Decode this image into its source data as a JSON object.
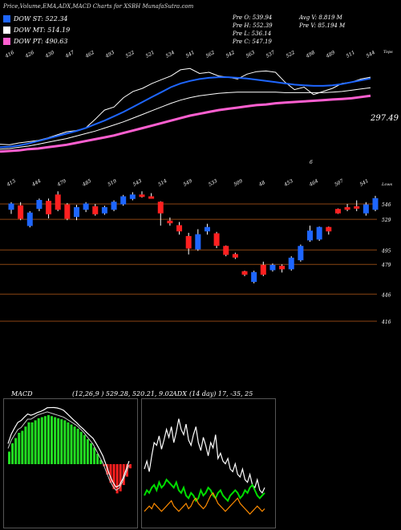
{
  "header": {
    "title": "Price,Volume,EMA,ADX,MACD Charts for XSBH MunafaSutra.com"
  },
  "legend": [
    {
      "label": "DOW ST: 522.34",
      "color": "#1e66ff"
    },
    {
      "label": "DOW MT: 514.19",
      "color": "#ffffff"
    },
    {
      "label": "DOW PT: 490.63",
      "color": "#ff5fd0"
    }
  ],
  "quote": {
    "open": "Pre O: 539.94",
    "high": "Pre H: 552.39",
    "low": "Pre L: 536.14",
    "close": "Pre C: 547.19",
    "avg_volume": "Avg V: 8.819 M",
    "pre_volume": "Pre V: 85.194 M"
  },
  "chart_data": [
    {
      "type": "line",
      "panel": "ema",
      "corner_label": "Tops",
      "price_label": "297.49",
      "tick_labels_top": [
        "416",
        "426",
        "430",
        "447",
        "462",
        "493",
        "522",
        "521",
        "534",
        "541",
        "562",
        "542",
        "563",
        "537",
        "522",
        "498",
        "489",
        "511",
        "544"
      ],
      "tick_labels_bottom": [
        "6"
      ],
      "series": [
        {
          "color": "#ffffff",
          "values": [
            20,
            19,
            22,
            24,
            26,
            30,
            35,
            40,
            42,
            46,
            60,
            75,
            80,
            95,
            105,
            110,
            118,
            124,
            130,
            140,
            142,
            134,
            136,
            130,
            128,
            125,
            133,
            137,
            138,
            136,
            120,
            108,
            112,
            100,
            105,
            110,
            118,
            120,
            125,
            128
          ]
        },
        {
          "color": "#1e66ff",
          "values": [
            15,
            16,
            18,
            21,
            25,
            29,
            33,
            37,
            41,
            46,
            52,
            58,
            65,
            72,
            80,
            88,
            96,
            104,
            112,
            118,
            122,
            125,
            127,
            128,
            128,
            127,
            126,
            124,
            122,
            120,
            118,
            116,
            115,
            114,
            114,
            115,
            117,
            120,
            123,
            126
          ]
        },
        {
          "color": "#ffffff",
          "values": [
            12,
            13,
            15,
            17,
            20,
            23,
            26,
            29,
            33,
            37,
            41,
            46,
            51,
            56,
            62,
            68,
            74,
            80,
            86,
            91,
            95,
            98,
            100,
            102,
            103,
            104,
            104,
            104,
            104,
            104,
            103,
            103,
            103,
            103,
            103,
            104,
            105,
            107,
            109,
            111
          ]
        },
        {
          "color": "#ff5fd0",
          "values": [
            8,
            9,
            10,
            12,
            13,
            15,
            17,
            19,
            22,
            25,
            28,
            31,
            34,
            38,
            42,
            46,
            50,
            54,
            58,
            62,
            66,
            69,
            72,
            75,
            77,
            79,
            81,
            83,
            84,
            86,
            87,
            88,
            89,
            90,
            91,
            92,
            93,
            94,
            96,
            98
          ]
        }
      ]
    },
    {
      "type": "candlestick",
      "panel": "price",
      "corner_label": "Lows",
      "y_axis_labels": [
        "546",
        "529",
        "495",
        "479",
        "446",
        "416"
      ],
      "top_labels": [
        "415",
        "444",
        "479",
        "485",
        "519",
        "543",
        "514",
        "549",
        "533",
        "509",
        "48",
        "453",
        "464",
        "507",
        "541"
      ],
      "candles": [
        {
          "o": 540,
          "c": 546,
          "h": 548,
          "l": 535,
          "up": true
        },
        {
          "o": 544,
          "c": 530,
          "h": 548,
          "l": 528,
          "up": false
        },
        {
          "o": 522,
          "c": 536,
          "h": 538,
          "l": 520,
          "up": true
        },
        {
          "o": 541,
          "c": 550,
          "h": 552,
          "l": 538,
          "up": true
        },
        {
          "o": 549,
          "c": 535,
          "h": 552,
          "l": 530,
          "up": false
        },
        {
          "o": 556,
          "c": 540,
          "h": 560,
          "l": 538,
          "up": false
        },
        {
          "o": 545,
          "c": 530,
          "h": 547,
          "l": 528,
          "up": false
        },
        {
          "o": 532,
          "c": 542,
          "h": 545,
          "l": 528,
          "up": true
        },
        {
          "o": 540,
          "c": 546,
          "h": 548,
          "l": 537,
          "up": true
        },
        {
          "o": 543,
          "c": 535,
          "h": 546,
          "l": 533,
          "up": false
        },
        {
          "o": 536,
          "c": 542,
          "h": 544,
          "l": 534,
          "up": true
        },
        {
          "o": 540,
          "c": 548,
          "h": 550,
          "l": 538,
          "up": true
        },
        {
          "o": 546,
          "c": 554,
          "h": 556,
          "l": 544,
          "up": true
        },
        {
          "o": 552,
          "c": 556,
          "h": 559,
          "l": 550,
          "up": true
        },
        {
          "o": 556,
          "c": 556,
          "h": 560,
          "l": 553,
          "up": false
        },
        {
          "o": 554,
          "c": 554,
          "h": 558,
          "l": 552,
          "up": false
        },
        {
          "o": 548,
          "c": 536,
          "h": 549,
          "l": 522,
          "up": false
        },
        {
          "o": 527,
          "c": 525,
          "h": 531,
          "l": 522,
          "up": false
        },
        {
          "o": 522,
          "c": 516,
          "h": 526,
          "l": 512,
          "up": false
        },
        {
          "o": 510,
          "c": 497,
          "h": 514,
          "l": 490,
          "up": false
        },
        {
          "o": 496,
          "c": 512,
          "h": 518,
          "l": 494,
          "up": true
        },
        {
          "o": 516,
          "c": 520,
          "h": 524,
          "l": 512,
          "up": true
        },
        {
          "o": 513,
          "c": 500,
          "h": 515,
          "l": 497,
          "up": false
        },
        {
          "o": 499,
          "c": 490,
          "h": 500,
          "l": 488,
          "up": false
        },
        {
          "o": 487,
          "c": 490,
          "h": 492,
          "l": 485,
          "up": false
        },
        {
          "o": 468,
          "c": 471,
          "h": 472,
          "l": 466,
          "up": false
        },
        {
          "o": 460,
          "c": 470,
          "h": 472,
          "l": 458,
          "up": true
        },
        {
          "o": 468,
          "c": 478,
          "h": 482,
          "l": 466,
          "up": false
        },
        {
          "o": 473,
          "c": 478,
          "h": 480,
          "l": 471,
          "up": true
        },
        {
          "o": 477,
          "c": 474,
          "h": 479,
          "l": 470,
          "up": false
        },
        {
          "o": 474,
          "c": 486,
          "h": 488,
          "l": 472,
          "up": true
        },
        {
          "o": 484,
          "c": 499,
          "h": 501,
          "l": 482,
          "up": true
        },
        {
          "o": 506,
          "c": 516,
          "h": 522,
          "l": 504,
          "up": true
        },
        {
          "o": 507,
          "c": 520,
          "h": 521,
          "l": 505,
          "up": true
        },
        {
          "o": 516,
          "c": 520,
          "h": 521,
          "l": 512,
          "up": false
        },
        {
          "o": 536,
          "c": 540,
          "h": 541,
          "l": 535,
          "up": false
        },
        {
          "o": 542,
          "c": 540,
          "h": 546,
          "l": 538,
          "up": false
        },
        {
          "o": 543,
          "c": 543,
          "h": 550,
          "l": 538,
          "up": false
        },
        {
          "o": 536,
          "c": 545,
          "h": 548,
          "l": 533,
          "up": true
        },
        {
          "o": 540,
          "c": 552,
          "h": 555,
          "l": 538,
          "up": true
        }
      ]
    },
    {
      "type": "bar",
      "panel": "macd",
      "label": "MACD",
      "params": "(12,26,9 ) 529.28, 520.21, 9.02",
      "values": [
        12,
        20,
        25,
        30,
        32,
        36,
        40,
        40,
        42,
        44,
        45,
        46,
        47,
        46,
        45,
        44,
        43,
        42,
        40,
        38,
        36,
        34,
        31,
        28,
        24,
        20,
        16,
        10,
        4,
        -2,
        -10,
        -18,
        -24,
        -28,
        -26,
        -20,
        -12,
        -4
      ]
    },
    {
      "type": "line",
      "panel": "adx",
      "label": "ADX",
      "params": "(14 day) 17, -35, 25",
      "series": [
        {
          "color": "#ffffff",
          "values": [
            40,
            46,
            38,
            50,
            60,
            58,
            65,
            55,
            62,
            70,
            64,
            72,
            60,
            68,
            78,
            70,
            66,
            74,
            62,
            58,
            66,
            72,
            60,
            54,
            64,
            58,
            50,
            60,
            56,
            66,
            48,
            52,
            46,
            44,
            48,
            40,
            38,
            44,
            36,
            34,
            40,
            32,
            30,
            36,
            28,
            26,
            32,
            24,
            22,
            26
          ]
        },
        {
          "color": "#00dd00",
          "values": [
            20,
            24,
            22,
            26,
            28,
            24,
            30,
            26,
            28,
            32,
            30,
            28,
            26,
            30,
            24,
            22,
            26,
            20,
            18,
            22,
            20,
            16,
            18,
            24,
            20,
            22,
            26,
            24,
            20,
            18,
            22,
            24,
            20,
            18,
            16,
            20,
            22,
            24,
            22,
            18,
            20,
            24,
            22,
            26,
            28,
            24,
            20,
            18,
            20,
            22
          ]
        },
        {
          "color": "#ff8c00",
          "values": [
            8,
            10,
            12,
            10,
            14,
            12,
            10,
            8,
            10,
            12,
            14,
            16,
            12,
            10,
            8,
            10,
            12,
            14,
            10,
            12,
            16,
            18,
            14,
            12,
            10,
            12,
            16,
            20,
            22,
            18,
            14,
            12,
            10,
            8,
            10,
            12,
            14,
            16,
            18,
            14,
            12,
            10,
            8,
            6,
            8,
            10,
            12,
            10,
            8,
            10
          ]
        }
      ]
    }
  ]
}
